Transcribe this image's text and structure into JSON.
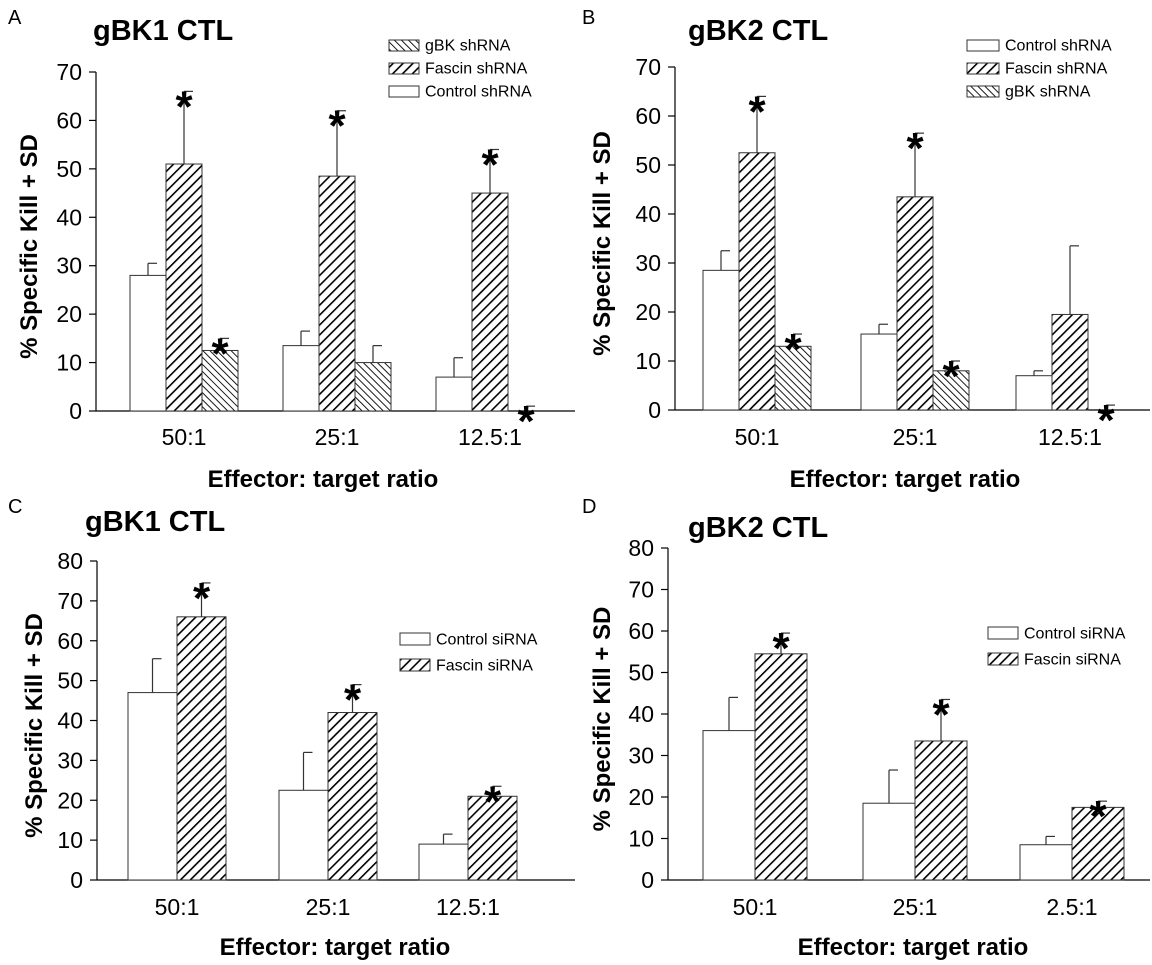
{
  "chart_data": [
    {
      "panel": "A",
      "type": "bar",
      "title": "gBK1 CTL",
      "xlabel": "Effector: target ratio",
      "ylabel": "% Specific Kill + SD",
      "ylim": [
        0,
        70
      ],
      "yticks": [
        0,
        10,
        20,
        30,
        40,
        50,
        60,
        70
      ],
      "categories": [
        "50:1",
        "25:1",
        "12.5:1"
      ],
      "legend_order": [
        "gBK shRNA",
        "Fascin shRNA",
        "Control shRNA"
      ],
      "legend_position": "top-right",
      "series": [
        {
          "name": "Control shRNA",
          "pattern": "white",
          "values": [
            28,
            13.5,
            7
          ],
          "errors": [
            2.5,
            3,
            4
          ],
          "significant": [
            false,
            false,
            false
          ]
        },
        {
          "name": "Fascin shRNA",
          "pattern": "hatch-forward",
          "values": [
            51,
            48.5,
            45
          ],
          "errors": [
            15,
            13.5,
            9
          ],
          "significant": [
            true,
            true,
            true
          ]
        },
        {
          "name": "gBK shRNA",
          "pattern": "hatch-back",
          "values": [
            12.5,
            10,
            0
          ],
          "errors": [
            2.5,
            3.5,
            1
          ],
          "significant": [
            true,
            false,
            true
          ]
        }
      ],
      "significance_marker": "*"
    },
    {
      "panel": "B",
      "type": "bar",
      "title": "gBK2 CTL",
      "xlabel": "Effector: target ratio",
      "ylabel": "% Specific Kill + SD",
      "ylim": [
        0,
        70
      ],
      "yticks": [
        0,
        10,
        20,
        30,
        40,
        50,
        60,
        70
      ],
      "categories": [
        "50:1",
        "25:1",
        "12.5:1"
      ],
      "legend_order": [
        "Control shRNA",
        "Fascin shRNA",
        "gBK shRNA"
      ],
      "legend_position": "top-right",
      "series": [
        {
          "name": "Control shRNA",
          "pattern": "white",
          "values": [
            28.5,
            15.5,
            7
          ],
          "errors": [
            4,
            2,
            1
          ],
          "significant": [
            false,
            false,
            false
          ]
        },
        {
          "name": "Fascin shRNA",
          "pattern": "hatch-forward",
          "values": [
            52.5,
            43.5,
            19.5
          ],
          "errors": [
            11.5,
            13,
            14
          ],
          "significant": [
            true,
            true,
            false
          ]
        },
        {
          "name": "gBK shRNA",
          "pattern": "hatch-back",
          "values": [
            13,
            8,
            0
          ],
          "errors": [
            2.5,
            2,
            1
          ],
          "significant": [
            true,
            true,
            true
          ]
        }
      ],
      "significance_marker": "*"
    },
    {
      "panel": "C",
      "type": "bar",
      "title": "gBK1 CTL",
      "xlabel": "Effector: target ratio",
      "ylabel": "% Specific Kill + SD",
      "ylim": [
        0,
        80
      ],
      "yticks": [
        0,
        10,
        20,
        30,
        40,
        50,
        60,
        70,
        80
      ],
      "categories": [
        "50:1",
        "25:1",
        "12.5:1"
      ],
      "legend_order": [
        "Control siRNA",
        "Fascin siRNA"
      ],
      "legend_position": "right",
      "series": [
        {
          "name": "Control siRNA",
          "pattern": "white",
          "values": [
            47,
            22.5,
            9
          ],
          "errors": [
            8.5,
            9.5,
            2.5
          ],
          "significant": [
            false,
            false,
            false
          ]
        },
        {
          "name": "Fascin siRNA",
          "pattern": "hatch-forward",
          "values": [
            66,
            42,
            21
          ],
          "errors": [
            8.5,
            7,
            2.5
          ],
          "significant": [
            true,
            true,
            true
          ]
        }
      ],
      "significance_marker": "*"
    },
    {
      "panel": "D",
      "type": "bar",
      "title": "gBK2 CTL",
      "xlabel": "Effector: target ratio",
      "ylabel": "% Specific Kill + SD",
      "ylim": [
        0,
        80
      ],
      "yticks": [
        0,
        10,
        20,
        30,
        40,
        50,
        60,
        70,
        80
      ],
      "categories": [
        "50:1",
        "25:1",
        "2.5:1"
      ],
      "legend_order": [
        "Control siRNA",
        "Fascin siRNA"
      ],
      "legend_position": "right",
      "series": [
        {
          "name": "Control siRNA",
          "pattern": "white",
          "values": [
            36,
            18.5,
            8.5
          ],
          "errors": [
            8,
            8,
            2
          ],
          "significant": [
            false,
            false,
            false
          ]
        },
        {
          "name": "Fascin siRNA",
          "pattern": "hatch-forward",
          "values": [
            54.5,
            33.5,
            17.5
          ],
          "errors": [
            5,
            10,
            1.5
          ],
          "significant": [
            true,
            true,
            true
          ]
        }
      ],
      "significance_marker": "*"
    }
  ]
}
